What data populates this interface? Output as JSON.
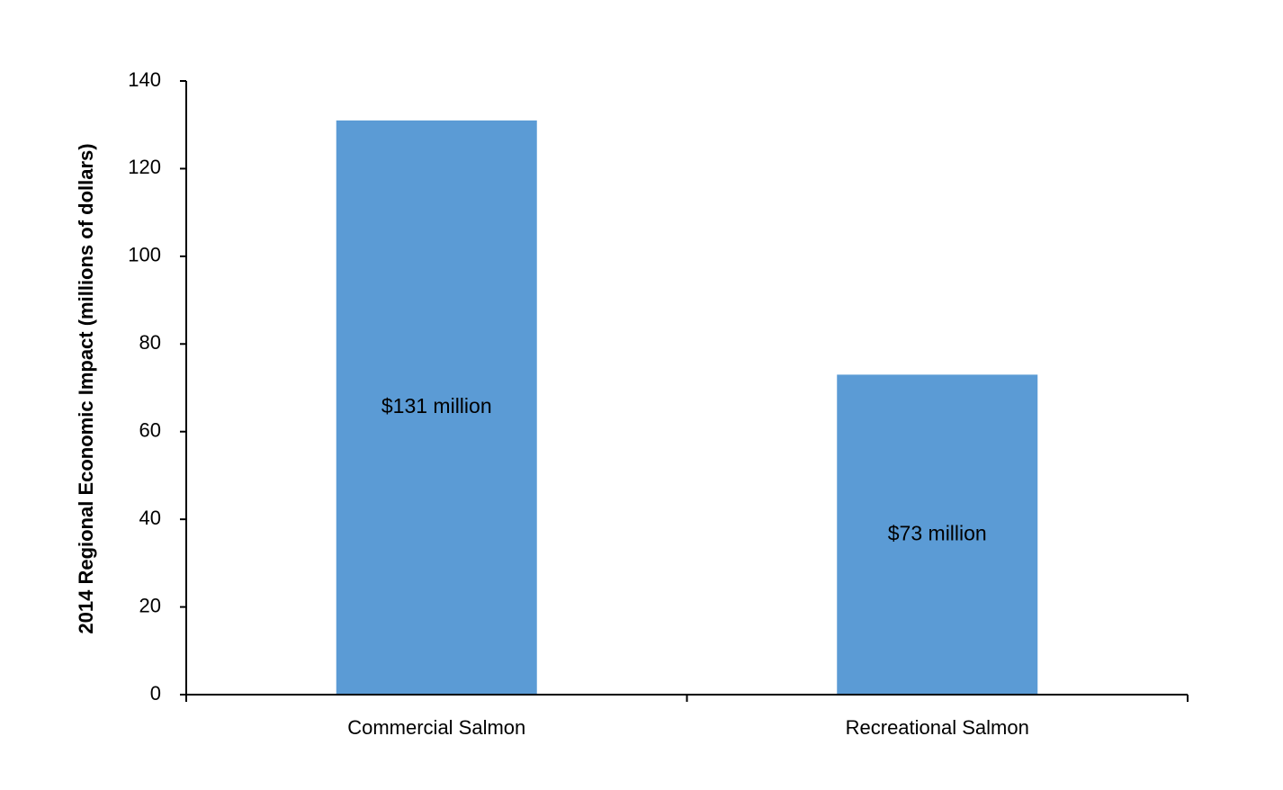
{
  "chart_data": {
    "type": "bar",
    "categories": [
      "Commercial Salmon",
      "Recreational Salmon"
    ],
    "values": [
      131,
      73
    ],
    "data_labels": [
      "$131 million",
      "$73 million"
    ],
    "title": "",
    "xlabel": "",
    "ylabel": "2014 Regional Economic Impact (millions of dollars)",
    "ylim": [
      0,
      140
    ],
    "yticks": [
      0,
      20,
      40,
      60,
      80,
      100,
      120,
      140
    ],
    "grid": false,
    "legend": "none",
    "bar_color": "#5B9BD5",
    "axis_color": "#000000"
  }
}
